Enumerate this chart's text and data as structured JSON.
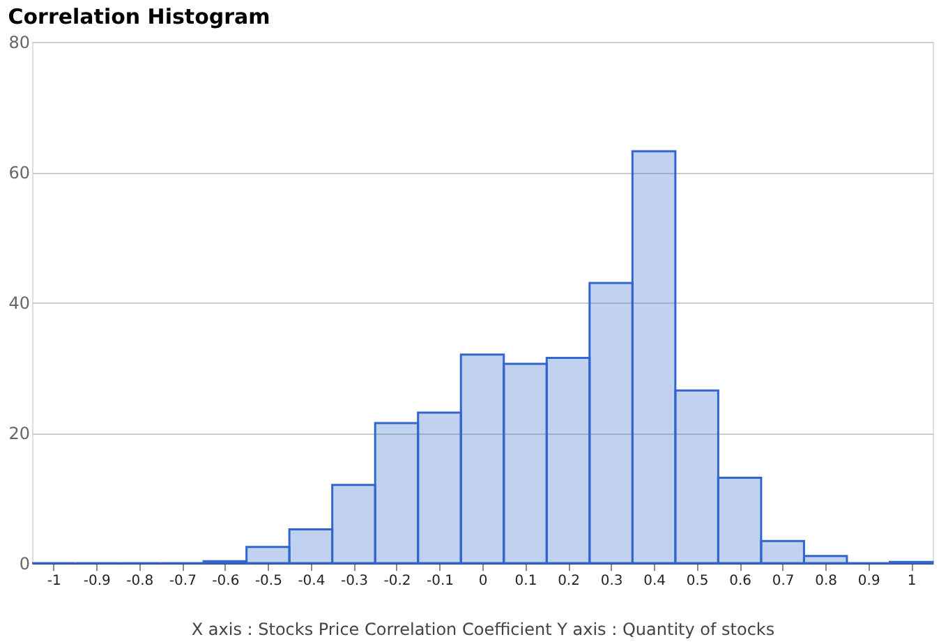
{
  "chart_data": {
    "type": "histogram",
    "title": "Correlation Histogram",
    "xlabel": "X axis : Stocks Price Correlation Coefficient  Y axis : Quantity of stocks",
    "bins": [
      -1.05,
      -0.95,
      -0.85,
      -0.75,
      -0.65,
      -0.55,
      -0.45,
      -0.35,
      -0.25,
      -0.15,
      -0.05,
      0.05,
      0.15,
      0.25,
      0.35,
      0.45,
      0.55,
      0.65,
      0.75,
      0.85,
      0.95,
      1.05
    ],
    "values": [
      0,
      0,
      0,
      0,
      0.3,
      2.5,
      5.2,
      12,
      21.5,
      23.1,
      32,
      30.6,
      31.5,
      43,
      63.2,
      26.5,
      13.1,
      3.4,
      1.1,
      0,
      0.2
    ],
    "color": "#3366cc",
    "xlim": [
      -1.05,
      1.05
    ],
    "xticks": [
      -1,
      -0.9,
      -0.8,
      -0.7,
      -0.6,
      -0.5,
      -0.4,
      -0.3,
      -0.2,
      -0.1,
      0,
      0.1,
      0.2,
      0.3,
      0.4,
      0.5,
      0.6,
      0.7,
      0.8,
      0.9,
      1
    ],
    "ylim": [
      0,
      80
    ],
    "yticks": [
      0,
      20,
      40,
      60,
      80
    ],
    "grid": "y"
  }
}
